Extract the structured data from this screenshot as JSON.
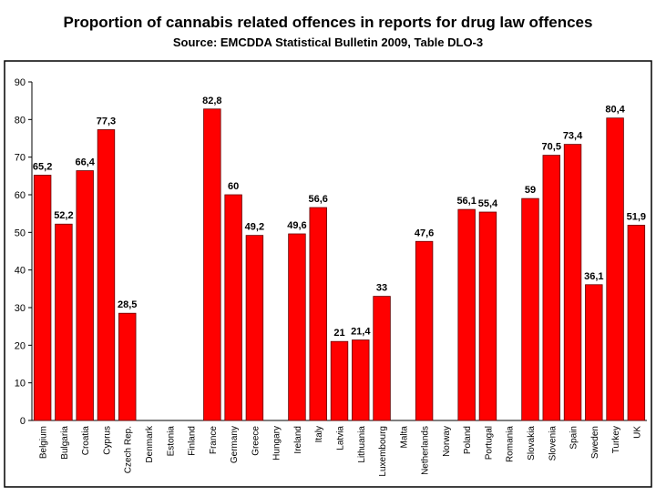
{
  "chart_data": {
    "type": "bar",
    "title": "Proportion of cannabis related offences in reports for drug law offences",
    "subtitle": "Source: EMCDDA Statistical Bulletin 2009, Table DLO-3",
    "categories": [
      "Belgium",
      "Bulgaria",
      "Croatia",
      "Cyprus",
      "Czech Rep.",
      "Denmark",
      "Estonia",
      "Finland",
      "France",
      "Germany",
      "Greece",
      "Hungary",
      "Ireland",
      "Italy",
      "Latvia",
      "Lithuania",
      "Luxembourg",
      "Malta",
      "Netherlands",
      "Norway",
      "Poland",
      "Portugal",
      "Romania",
      "Slovakia",
      "Slovenia",
      "Spain",
      "Sweden",
      "Turkey",
      "UK"
    ],
    "values": [
      65.2,
      52.2,
      66.4,
      77.3,
      28.5,
      null,
      null,
      null,
      82.8,
      60,
      49.2,
      null,
      49.6,
      56.6,
      21,
      21.4,
      33,
      null,
      47.6,
      null,
      56.1,
      55.4,
      null,
      59,
      70.5,
      73.4,
      36.1,
      80.4,
      51.9
    ],
    "value_labels": [
      "65,2",
      "52,2",
      "66,4",
      "77,3",
      "28,5",
      null,
      null,
      null,
      "82,8",
      "60",
      "49,2",
      null,
      "49,6",
      "56,6",
      "21",
      "21,4",
      "33",
      null,
      "47,6",
      null,
      "56,1",
      "55,4",
      null,
      "59",
      "70,5",
      "73,4",
      "36,1",
      "80,4",
      "51,9"
    ],
    "color": "#ff0000",
    "ylim": [
      0,
      90
    ],
    "yticks": [
      0,
      10,
      20,
      30,
      40,
      50,
      60,
      70,
      80,
      90
    ],
    "grid": false
  }
}
